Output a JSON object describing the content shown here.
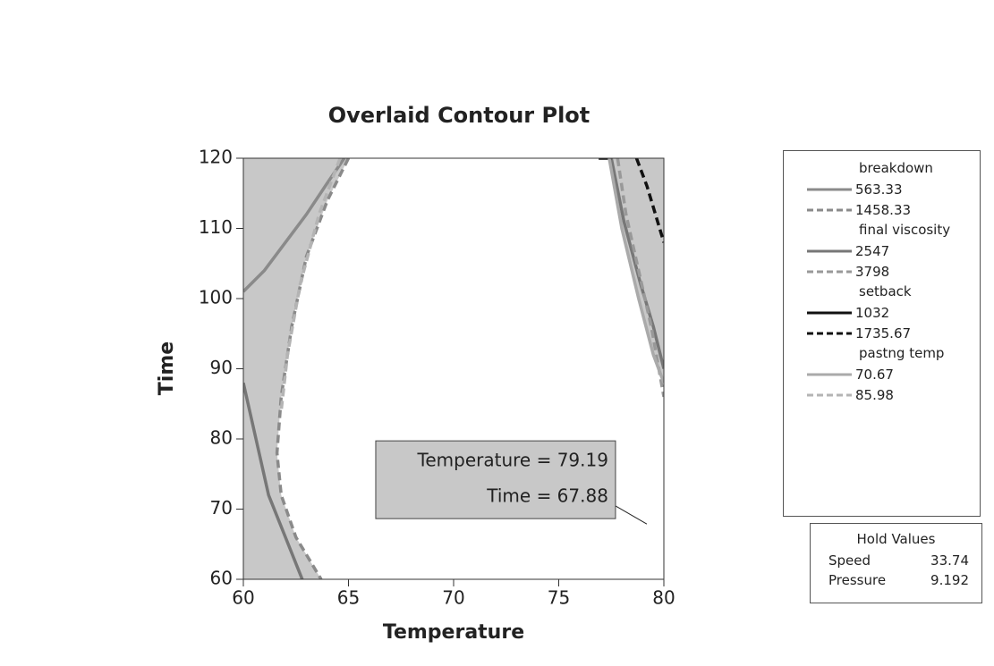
{
  "chart_data": {
    "type": "contour",
    "title": "Overlaid Contour Plot",
    "xlabel": "Temperature",
    "ylabel": "Time",
    "xlim": [
      60,
      80
    ],
    "ylim": [
      60,
      120
    ],
    "xticks": [
      60,
      65,
      70,
      75,
      80
    ],
    "yticks": [
      60,
      70,
      80,
      90,
      100,
      110,
      120
    ],
    "shade_color": "#c8c8c8",
    "groups": [
      {
        "name": "breakdown",
        "levels": [
          {
            "value": 563.33,
            "color": "#8a8a8a",
            "dashed": false,
            "x": [
              60,
              61,
              62,
              63,
              64,
              64.8
            ],
            "y": [
              101,
              104,
              108,
              112,
              116.5,
              120
            ]
          },
          {
            "value": 1458.33,
            "color": "#8a8a8a",
            "dashed": true,
            "x": [
              65,
              64,
              63,
              62.3,
              61.8,
              61.6,
              61.8,
              62.5,
              63.7
            ],
            "y": [
              120,
              114,
              106,
              96,
              86,
              78,
              72,
              66,
              60
            ]
          }
        ]
      },
      {
        "name": "final viscosity",
        "levels": [
          {
            "value": 2547,
            "color": "#777777",
            "dashed": false,
            "x": [
              60,
              60.6,
              61.2,
              62,
              62.8,
              null,
              77.5,
              78.1,
              78.9,
              79.5,
              80
            ],
            "y": [
              88,
              80,
              72,
              66,
              60,
              null,
              120,
              111,
              102,
              96,
              90
            ]
          },
          {
            "value": 3798,
            "color": "#999999",
            "dashed": true,
            "x": [
              77.8,
              78.2,
              78.8,
              79.4,
              80
            ],
            "y": [
              120,
              112,
              104,
              96,
              86
            ]
          }
        ]
      },
      {
        "name": "setback",
        "levels": [
          {
            "value": 1032,
            "color": "#111111",
            "dashed": false,
            "x": [
              76.9,
              77.5
            ],
            "y": [
              120,
              120
            ]
          },
          {
            "value": 1735.67,
            "color": "#111111",
            "dashed": true,
            "x": [
              78.7,
              79.2,
              79.6,
              80
            ],
            "y": [
              120,
              116,
              112,
              108
            ]
          }
        ]
      },
      {
        "name": "pastng temp",
        "levels": [
          {
            "value": 70.67,
            "color": "#aaaaaa",
            "dashed": false,
            "x": [
              77.4,
              78,
              78.8,
              79.5,
              80
            ],
            "y": [
              120,
              110,
              100,
              92,
              88
            ]
          },
          {
            "value": 85.98,
            "color": "#b4b4b4",
            "dashed": true,
            "x": [
              64.6,
              63.6,
              62.7,
              62.1,
              61.8
            ],
            "y": [
              120,
              112,
              102,
              92,
              84
            ]
          }
        ]
      }
    ],
    "crosshair": {
      "x": 79.19,
      "y": 67.88,
      "lines": [
        "Temperature = 79.19",
        "Time = 67.88"
      ]
    },
    "hold_values": {
      "title": "Hold Values",
      "rows": [
        [
          "Speed",
          33.74
        ],
        [
          "Pressure",
          9.192
        ]
      ]
    }
  }
}
